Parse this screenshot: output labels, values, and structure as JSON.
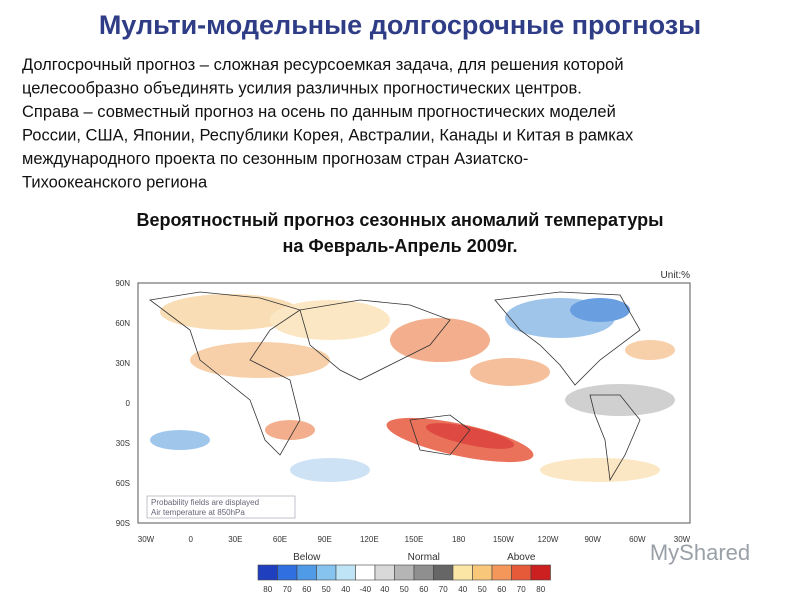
{
  "header": {
    "title": "Мульти-модельные долгосрочные прогнозы"
  },
  "body": {
    "lines": [
      "Долгосрочный прогноз – сложная ресурсоемкая задача, для решения которой",
      "целесообразно объединять усилия различных прогностических центров.",
      "Справа – совместный прогноз на осень по данным прогностических моделей",
      "России, США, Японии, Республики Корея, Австралии, Канады и Китая в рамках",
      "международного проекта по сезонным прогнозам стран Азиатско-",
      "Тихоокеанского региона"
    ]
  },
  "figure": {
    "caption": [
      "Вероятностный прогноз сезонных аномалий температуры",
      "на Февраль-Апрель 2009г."
    ],
    "unit": "Unit:%",
    "lat_labels": [
      "90N",
      "60N",
      "30N",
      "0",
      "30S",
      "60S",
      "90S"
    ],
    "lon_labels": [
      "30W",
      "0",
      "30E",
      "60E",
      "90E",
      "120E",
      "150E",
      "180",
      "150W",
      "120W",
      "90W",
      "60W",
      "30W"
    ],
    "note": [
      "Probability fields are displayed",
      "Air temperature at 850hPa"
    ],
    "legend": {
      "groups": [
        "Below",
        "Normal",
        "Above"
      ],
      "labels": [
        "80",
        "70",
        "60",
        "50",
        "40",
        "-40",
        "40",
        "50",
        "60",
        "70",
        "40",
        "50",
        "60",
        "70",
        "80"
      ]
    }
  },
  "watermark": "MyShared"
}
